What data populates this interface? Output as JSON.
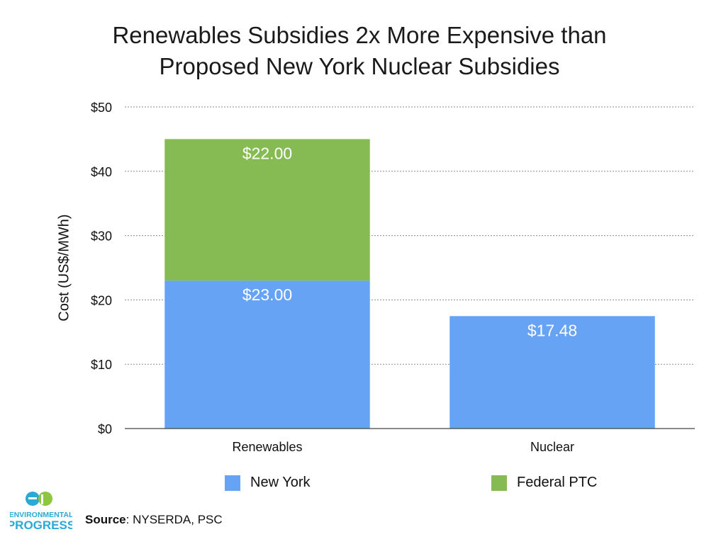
{
  "title": {
    "line1": "Renewables Subsidies 2x More Expensive than",
    "line2": "Proposed New York Nuclear Subsidies"
  },
  "chart_data": {
    "type": "bar",
    "stacked": true,
    "categories": [
      "Renewables",
      "Nuclear"
    ],
    "series": [
      {
        "name": "New York",
        "values": [
          23.0,
          17.48
        ],
        "labels": [
          "$23.00",
          "$17.48"
        ],
        "color": "#66a3f4"
      },
      {
        "name": "Federal PTC",
        "values": [
          22.0,
          0
        ],
        "labels": [
          "$22.00",
          ""
        ],
        "color": "#86bb54"
      }
    ],
    "ylabel": "Cost (US$/MWh)",
    "xlabel": "",
    "ylim": [
      0,
      50
    ],
    "yticks": [
      0,
      10,
      20,
      30,
      40,
      50
    ],
    "ytick_labels": [
      "$0",
      "$10",
      "$20",
      "$30",
      "$40",
      "$50"
    ],
    "grid": true,
    "legend_position": "bottom"
  },
  "logo": {
    "line1": "ENVIRONMENTAL",
    "line2": "PROGRESS"
  },
  "source": {
    "label": "Source",
    "text": ": NYSERDA, PSC"
  },
  "colors": {
    "accent_blue": "#2aa9d6",
    "accent_green": "#8dc63f"
  }
}
